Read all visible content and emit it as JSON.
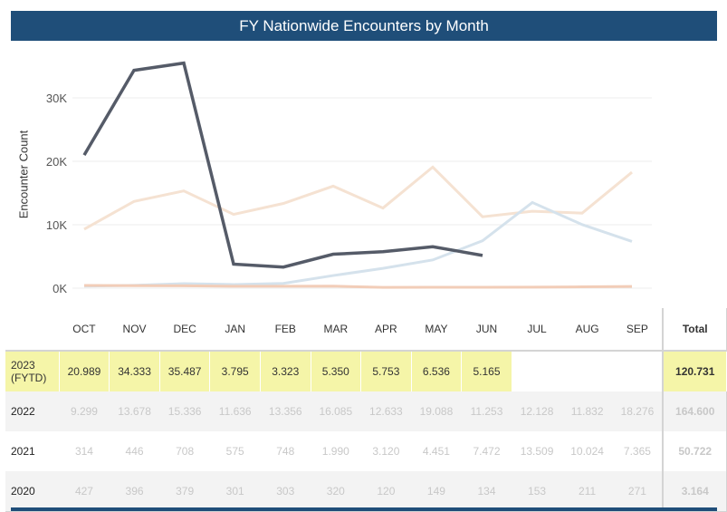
{
  "title": "FY Nationwide Encounters by Month",
  "chart_data": {
    "type": "line",
    "title": "FY Nationwide Encounters by Month",
    "ylabel": "Encounter Count",
    "xlabel": "",
    "categories": [
      "OCT",
      "NOV",
      "DEC",
      "JAN",
      "FEB",
      "MAR",
      "APR",
      "MAY",
      "JUN",
      "JUL",
      "AUG",
      "SEP"
    ],
    "ylim": [
      0,
      36000
    ],
    "yticks": [
      0,
      10000,
      20000,
      30000
    ],
    "ytick_labels": [
      "0K",
      "10K",
      "20K",
      "30K"
    ],
    "grid": true,
    "series": [
      {
        "name": "2022",
        "color": "#f5e2d2",
        "values": [
          9299,
          13678,
          15336,
          11636,
          13356,
          16085,
          12633,
          19088,
          11253,
          12128,
          11832,
          18276
        ]
      },
      {
        "name": "2021",
        "color": "#d5e2ec",
        "values": [
          314,
          446,
          708,
          575,
          748,
          1990,
          3120,
          4451,
          7472,
          13509,
          10024,
          7365
        ]
      },
      {
        "name": "2020",
        "color": "#f2cdb8",
        "values": [
          427,
          396,
          379,
          301,
          303,
          320,
          120,
          149,
          134,
          153,
          211,
          271
        ]
      },
      {
        "name": "2023 (FYTD)",
        "color": "#555b68",
        "values": [
          20989,
          34333,
          35487,
          3795,
          3323,
          5350,
          5753,
          6536,
          5165,
          null,
          null,
          null
        ]
      }
    ]
  },
  "table": {
    "headers": [
      "OCT",
      "NOV",
      "DEC",
      "JAN",
      "FEB",
      "MAR",
      "APR",
      "MAY",
      "JUN",
      "JUL",
      "AUG",
      "SEP"
    ],
    "total_header": "Total",
    "rows": [
      {
        "label": "2023\n(FYTD)",
        "values": [
          "20.989",
          "34.333",
          "35.487",
          "3.795",
          "3.323",
          "5.350",
          "5.753",
          "6.536",
          "5.165",
          "",
          "",
          ""
        ],
        "total": "120.731"
      },
      {
        "label": "2022",
        "values": [
          "9.299",
          "13.678",
          "15.336",
          "11.636",
          "13.356",
          "16.085",
          "12.633",
          "19.088",
          "11.253",
          "12.128",
          "11.832",
          "18.276"
        ],
        "total": "164.600"
      },
      {
        "label": "2021",
        "values": [
          "314",
          "446",
          "708",
          "575",
          "748",
          "1.990",
          "3.120",
          "4.451",
          "7.472",
          "13.509",
          "10.024",
          "7.365"
        ],
        "total": "50.722"
      },
      {
        "label": "2020",
        "values": [
          "427",
          "396",
          "379",
          "301",
          "303",
          "320",
          "120",
          "149",
          "134",
          "153",
          "211",
          "271"
        ],
        "total": "3.164"
      }
    ]
  },
  "highlight_color": "#f5f5a8",
  "header_color": "#1f4e79"
}
